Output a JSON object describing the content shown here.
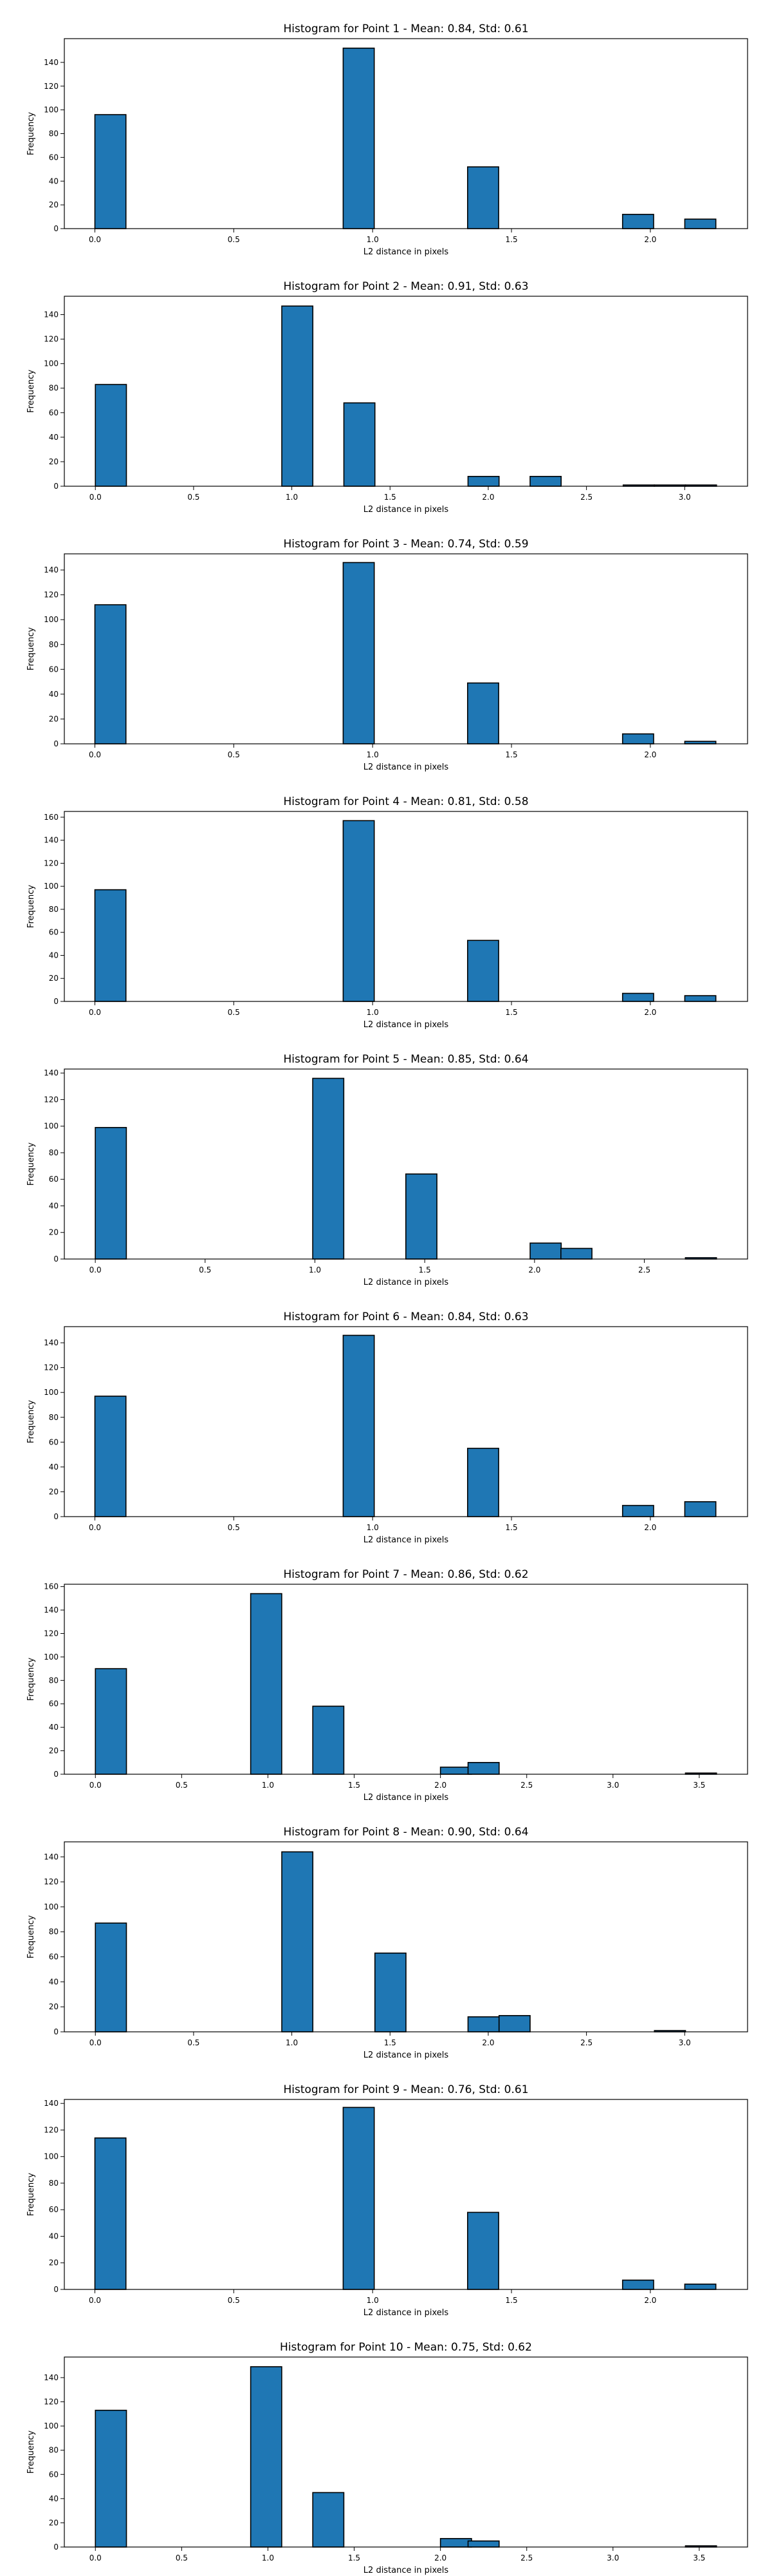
{
  "figure": {
    "background": "#ffffff",
    "bar_color": "#1f77b4",
    "edge_color": "#000000"
  },
  "chart_data": [
    {
      "type": "bar",
      "title": "Histogram for Point 1 - Mean: 0.84, Std: 0.61",
      "xlabel": "L2 distance in pixels",
      "ylabel": "Frequency",
      "xlim": [
        -0.11,
        2.35
      ],
      "xticks": [
        0.0,
        0.5,
        1.0,
        1.5,
        2.0
      ],
      "xtick_labels": [
        "0.0",
        "0.5",
        "1.0",
        "1.5",
        "2.0"
      ],
      "ylim": [
        0,
        160
      ],
      "yticks": [
        0,
        20,
        40,
        60,
        80,
        100,
        120,
        140
      ],
      "yticks_labels": [
        "0",
        "20",
        "40",
        "60",
        "80",
        "100",
        "120",
        "140"
      ],
      "bin_width": 0.1118,
      "bins": [
        {
          "x0": 0.0,
          "value": 96
        },
        {
          "x0": 0.894,
          "value": 152
        },
        {
          "x0": 1.342,
          "value": 52
        },
        {
          "x0": 1.9,
          "value": 12
        },
        {
          "x0": 2.124,
          "value": 8
        }
      ]
    },
    {
      "type": "bar",
      "title": "Histogram for Point 2 - Mean: 0.91, Std: 0.63",
      "xlabel": "L2 distance in pixels",
      "ylabel": "Frequency",
      "xlim": [
        -0.158,
        3.32
      ],
      "xticks": [
        0.0,
        0.5,
        1.0,
        1.5,
        2.0,
        2.5,
        3.0
      ],
      "xtick_labels": [
        "0.0",
        "0.5",
        "1.0",
        "1.5",
        "2.0",
        "2.5",
        "3.0"
      ],
      "ylim": [
        0,
        155
      ],
      "yticks": [
        0,
        20,
        40,
        60,
        80,
        100,
        120,
        140
      ],
      "yticks_labels": [
        "0",
        "20",
        "40",
        "60",
        "80",
        "100",
        "120",
        "140"
      ],
      "bin_width": 0.158,
      "bins": [
        {
          "x0": 0.0,
          "value": 83
        },
        {
          "x0": 0.949,
          "value": 147
        },
        {
          "x0": 1.265,
          "value": 68
        },
        {
          "x0": 1.897,
          "value": 8
        },
        {
          "x0": 2.213,
          "value": 8
        },
        {
          "x0": 2.687,
          "value": 1
        },
        {
          "x0": 2.846,
          "value": 1
        },
        {
          "x0": 3.004,
          "value": 1
        }
      ]
    },
    {
      "type": "bar",
      "title": "Histogram for Point 3 - Mean: 0.74, Std: 0.59",
      "xlabel": "L2 distance in pixels",
      "ylabel": "Frequency",
      "xlim": [
        -0.11,
        2.35
      ],
      "xticks": [
        0.0,
        0.5,
        1.0,
        1.5,
        2.0
      ],
      "xtick_labels": [
        "0.0",
        "0.5",
        "1.0",
        "1.5",
        "2.0"
      ],
      "ylim": [
        0,
        153
      ],
      "yticks": [
        0,
        20,
        40,
        60,
        80,
        100,
        120,
        140
      ],
      "yticks_labels": [
        "0",
        "20",
        "40",
        "60",
        "80",
        "100",
        "120",
        "140"
      ],
      "bin_width": 0.1118,
      "bins": [
        {
          "x0": 0.0,
          "value": 112
        },
        {
          "x0": 0.894,
          "value": 146
        },
        {
          "x0": 1.342,
          "value": 49
        },
        {
          "x0": 1.9,
          "value": 8
        },
        {
          "x0": 2.124,
          "value": 2
        }
      ]
    },
    {
      "type": "bar",
      "title": "Histogram for Point 4 - Mean: 0.81, Std: 0.58",
      "xlabel": "L2 distance in pixels",
      "ylabel": "Frequency",
      "xlim": [
        -0.11,
        2.35
      ],
      "xticks": [
        0.0,
        0.5,
        1.0,
        1.5,
        2.0
      ],
      "xtick_labels": [
        "0.0",
        "0.5",
        "1.0",
        "1.5",
        "2.0"
      ],
      "ylim": [
        0,
        165
      ],
      "yticks": [
        0,
        20,
        40,
        60,
        80,
        100,
        120,
        140,
        160
      ],
      "yticks_labels": [
        "0",
        "20",
        "40",
        "60",
        "80",
        "100",
        "120",
        "140",
        "160"
      ],
      "bin_width": 0.1118,
      "bins": [
        {
          "x0": 0.0,
          "value": 97
        },
        {
          "x0": 0.894,
          "value": 157
        },
        {
          "x0": 1.342,
          "value": 53
        },
        {
          "x0": 1.9,
          "value": 7
        },
        {
          "x0": 2.124,
          "value": 5
        }
      ]
    },
    {
      "type": "bar",
      "title": "Histogram for Point 5 - Mean: 0.85, Std: 0.64",
      "xlabel": "L2 distance in pixels",
      "ylabel": "Frequency",
      "xlim": [
        -0.141,
        2.97
      ],
      "xticks": [
        0.0,
        0.5,
        1.0,
        1.5,
        2.0,
        2.5
      ],
      "xtick_labels": [
        "0.0",
        "0.5",
        "1.0",
        "1.5",
        "2.0",
        "2.5"
      ],
      "ylim": [
        0,
        143
      ],
      "yticks": [
        0,
        20,
        40,
        60,
        80,
        100,
        120,
        140
      ],
      "yticks_labels": [
        "0",
        "20",
        "40",
        "60",
        "80",
        "100",
        "120",
        "140"
      ],
      "bin_width": 0.1414,
      "bins": [
        {
          "x0": 0.0,
          "value": 99
        },
        {
          "x0": 0.99,
          "value": 136
        },
        {
          "x0": 1.414,
          "value": 64
        },
        {
          "x0": 1.98,
          "value": 12
        },
        {
          "x0": 2.12,
          "value": 8
        },
        {
          "x0": 2.687,
          "value": 1
        }
      ]
    },
    {
      "type": "bar",
      "title": "Histogram for Point 6 - Mean: 0.84, Std: 0.63",
      "xlabel": "L2 distance in pixels",
      "ylabel": "Frequency",
      "xlim": [
        -0.11,
        2.35
      ],
      "xticks": [
        0.0,
        0.5,
        1.0,
        1.5,
        2.0
      ],
      "xtick_labels": [
        "0.0",
        "0.5",
        "1.0",
        "1.5",
        "2.0"
      ],
      "ylim": [
        0,
        153
      ],
      "yticks": [
        0,
        20,
        40,
        60,
        80,
        100,
        120,
        140
      ],
      "yticks_labels": [
        "0",
        "20",
        "40",
        "60",
        "80",
        "100",
        "120",
        "140"
      ],
      "bin_width": 0.1118,
      "bins": [
        {
          "x0": 0.0,
          "value": 97
        },
        {
          "x0": 0.894,
          "value": 146
        },
        {
          "x0": 1.342,
          "value": 55
        },
        {
          "x0": 1.9,
          "value": 9
        },
        {
          "x0": 2.124,
          "value": 12
        }
      ]
    },
    {
      "type": "bar",
      "title": "Histogram for Point 7 - Mean: 0.86, Std: 0.62",
      "xlabel": "L2 distance in pixels",
      "ylabel": "Frequency",
      "xlim": [
        -0.18,
        3.78
      ],
      "xticks": [
        0.0,
        0.5,
        1.0,
        1.5,
        2.0,
        2.5,
        3.0,
        3.5
      ],
      "xtick_labels": [
        "0.0",
        "0.5",
        "1.0",
        "1.5",
        "2.0",
        "2.5",
        "3.0",
        "3.5"
      ],
      "ylim": [
        0,
        162
      ],
      "yticks": [
        0,
        20,
        40,
        60,
        80,
        100,
        120,
        140,
        160
      ],
      "yticks_labels": [
        "0",
        "20",
        "40",
        "60",
        "80",
        "100",
        "120",
        "140",
        "160"
      ],
      "bin_width": 0.18,
      "bins": [
        {
          "x0": 0.0,
          "value": 90
        },
        {
          "x0": 0.9,
          "value": 154
        },
        {
          "x0": 1.26,
          "value": 58
        },
        {
          "x0": 2.0,
          "value": 6
        },
        {
          "x0": 2.16,
          "value": 10
        },
        {
          "x0": 3.42,
          "value": 1
        }
      ]
    },
    {
      "type": "bar",
      "title": "Histogram for Point 8 - Mean: 0.90, Std: 0.64",
      "xlabel": "L2 distance in pixels",
      "ylabel": "Frequency",
      "xlim": [
        -0.158,
        3.32
      ],
      "xticks": [
        0.0,
        0.5,
        1.0,
        1.5,
        2.0,
        2.5,
        3.0
      ],
      "xtick_labels": [
        "0.0",
        "0.5",
        "1.0",
        "1.5",
        "2.0",
        "2.5",
        "3.0"
      ],
      "ylim": [
        0,
        152
      ],
      "yticks": [
        0,
        20,
        40,
        60,
        80,
        100,
        120,
        140
      ],
      "yticks_labels": [
        "0",
        "20",
        "40",
        "60",
        "80",
        "100",
        "120",
        "140"
      ],
      "bin_width": 0.158,
      "bins": [
        {
          "x0": 0.0,
          "value": 87
        },
        {
          "x0": 0.949,
          "value": 144
        },
        {
          "x0": 1.423,
          "value": 63
        },
        {
          "x0": 1.897,
          "value": 12
        },
        {
          "x0": 2.055,
          "value": 13
        },
        {
          "x0": 2.846,
          "value": 1
        }
      ]
    },
    {
      "type": "bar",
      "title": "Histogram for Point 9 - Mean: 0.76, Std: 0.61",
      "xlabel": "L2 distance in pixels",
      "ylabel": "Frequency",
      "xlim": [
        -0.11,
        2.35
      ],
      "xticks": [
        0.0,
        0.5,
        1.0,
        1.5,
        2.0
      ],
      "xtick_labels": [
        "0.0",
        "0.5",
        "1.0",
        "1.5",
        "2.0"
      ],
      "ylim": [
        0,
        143
      ],
      "yticks": [
        0,
        20,
        40,
        60,
        80,
        100,
        120,
        140
      ],
      "yticks_labels": [
        "0",
        "20",
        "40",
        "60",
        "80",
        "100",
        "120",
        "140"
      ],
      "bin_width": 0.1118,
      "bins": [
        {
          "x0": 0.0,
          "value": 114
        },
        {
          "x0": 0.894,
          "value": 137
        },
        {
          "x0": 1.342,
          "value": 58
        },
        {
          "x0": 1.9,
          "value": 7
        },
        {
          "x0": 2.124,
          "value": 4
        }
      ]
    },
    {
      "type": "bar",
      "title": "Histogram for Point 10 - Mean: 0.75, Std: 0.62",
      "xlabel": "L2 distance in pixels",
      "ylabel": "Frequency",
      "xlim": [
        -0.18,
        3.78
      ],
      "xticks": [
        0.0,
        0.5,
        1.0,
        1.5,
        2.0,
        2.5,
        3.0,
        3.5
      ],
      "xtick_labels": [
        "0.0",
        "0.5",
        "1.0",
        "1.5",
        "2.0",
        "2.5",
        "3.0",
        "3.5"
      ],
      "ylim": [
        0,
        157
      ],
      "yticks": [
        0,
        20,
        40,
        60,
        80,
        100,
        120,
        140
      ],
      "yticks_labels": [
        "0",
        "20",
        "40",
        "60",
        "80",
        "100",
        "120",
        "140"
      ],
      "bin_width": 0.18,
      "bins": [
        {
          "x0": 0.0,
          "value": 113
        },
        {
          "x0": 0.9,
          "value": 149
        },
        {
          "x0": 1.26,
          "value": 45
        },
        {
          "x0": 2.0,
          "value": 7
        },
        {
          "x0": 2.16,
          "value": 5
        },
        {
          "x0": 3.42,
          "value": 1
        }
      ]
    }
  ]
}
